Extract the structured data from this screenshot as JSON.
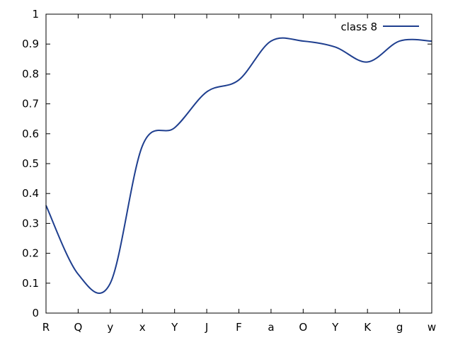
{
  "chart_data": {
    "type": "line",
    "title": "",
    "xlabel": "",
    "ylabel": "",
    "categories": [
      "R",
      "Q",
      "y",
      "x",
      "Y",
      "J",
      "F",
      "a",
      "O",
      "Y",
      "K",
      "g",
      "w"
    ],
    "ylim": [
      0,
      1
    ],
    "yticks": [
      "0",
      "0.1",
      "0.2",
      "0.3",
      "0.4",
      "0.5",
      "0.6",
      "0.7",
      "0.8",
      "0.9",
      "1"
    ],
    "grid": false,
    "legend_position": "top-right",
    "series": [
      {
        "name": "class 8",
        "color": "#1f3f8f",
        "values": [
          0.36,
          0.13,
          0.1,
          0.56,
          0.62,
          0.74,
          0.78,
          0.91,
          0.91,
          0.89,
          0.84,
          0.91,
          0.91
        ]
      }
    ]
  }
}
